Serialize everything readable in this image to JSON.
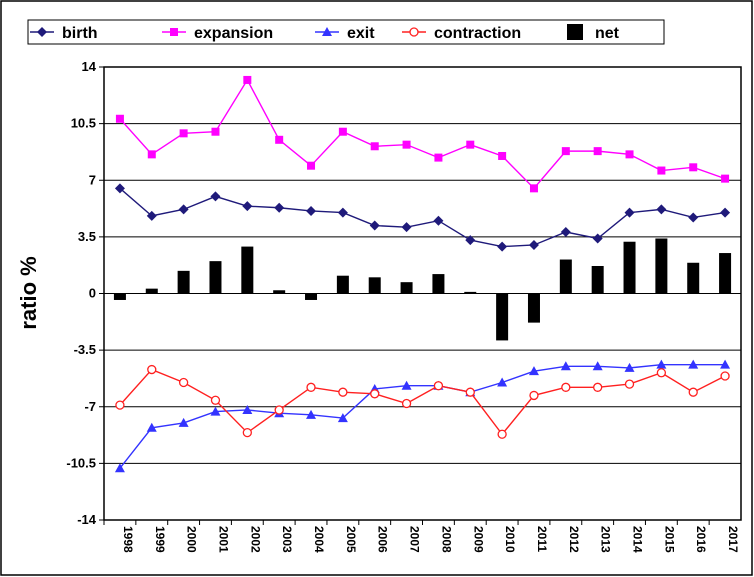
{
  "chart_data": {
    "type": "line",
    "title": "",
    "xlabel": "",
    "ylabel": "ratio %",
    "ylim": [
      -14,
      14
    ],
    "yticks": [
      14,
      10.5,
      7,
      3.5,
      0,
      -3.5,
      -7,
      -10.5,
      -14
    ],
    "grid": "horizontal",
    "legend_position": "top",
    "categories": [
      "1998",
      "1999",
      "2000",
      "2001",
      "2002",
      "2003",
      "2004",
      "2005",
      "2006",
      "2007",
      "2008",
      "2009",
      "2010",
      "2011",
      "2012",
      "2013",
      "2014",
      "2015",
      "2016",
      "2017"
    ],
    "series": [
      {
        "name": "birth",
        "kind": "line",
        "marker": "diamond",
        "color": "#1f1a7a",
        "values": [
          6.5,
          4.8,
          5.2,
          6.0,
          5.4,
          5.3,
          5.1,
          5.0,
          4.2,
          4.1,
          4.5,
          3.3,
          2.9,
          3.0,
          3.8,
          3.4,
          5.0,
          5.2,
          4.7,
          5.0
        ]
      },
      {
        "name": "expansion",
        "kind": "line",
        "marker": "square",
        "color": "#ff00ff",
        "values": [
          10.8,
          8.6,
          9.9,
          10.0,
          13.2,
          9.5,
          7.9,
          10.0,
          9.1,
          9.2,
          8.4,
          9.2,
          8.5,
          6.5,
          8.8,
          8.8,
          8.6,
          7.6,
          7.8,
          7.1
        ]
      },
      {
        "name": "exit",
        "kind": "line",
        "marker": "triangle",
        "color": "#3333ff",
        "values": [
          -10.8,
          -8.3,
          -8.0,
          -7.3,
          -7.2,
          -7.4,
          -7.5,
          -7.7,
          -5.9,
          -5.7,
          -5.7,
          -6.1,
          -5.5,
          -4.8,
          -4.5,
          -4.5,
          -4.6,
          -4.4,
          -4.4,
          -4.4
        ]
      },
      {
        "name": "contraction",
        "kind": "line",
        "marker": "circle-open",
        "color": "#ff2020",
        "values": [
          -6.9,
          -4.7,
          -5.5,
          -6.6,
          -8.6,
          -7.2,
          -5.8,
          -6.1,
          -6.2,
          -6.8,
          -5.7,
          -6.1,
          -8.7,
          -6.3,
          -5.8,
          -5.8,
          -5.6,
          -4.9,
          -6.1,
          -5.1
        ]
      },
      {
        "name": "net",
        "kind": "bar",
        "color": "#000000",
        "values": [
          -0.4,
          0.3,
          1.4,
          2.0,
          2.9,
          0.2,
          -0.4,
          1.1,
          1.0,
          0.7,
          1.2,
          0.1,
          -2.9,
          -1.8,
          2.1,
          1.7,
          3.2,
          3.4,
          1.9,
          2.5
        ]
      }
    ]
  }
}
